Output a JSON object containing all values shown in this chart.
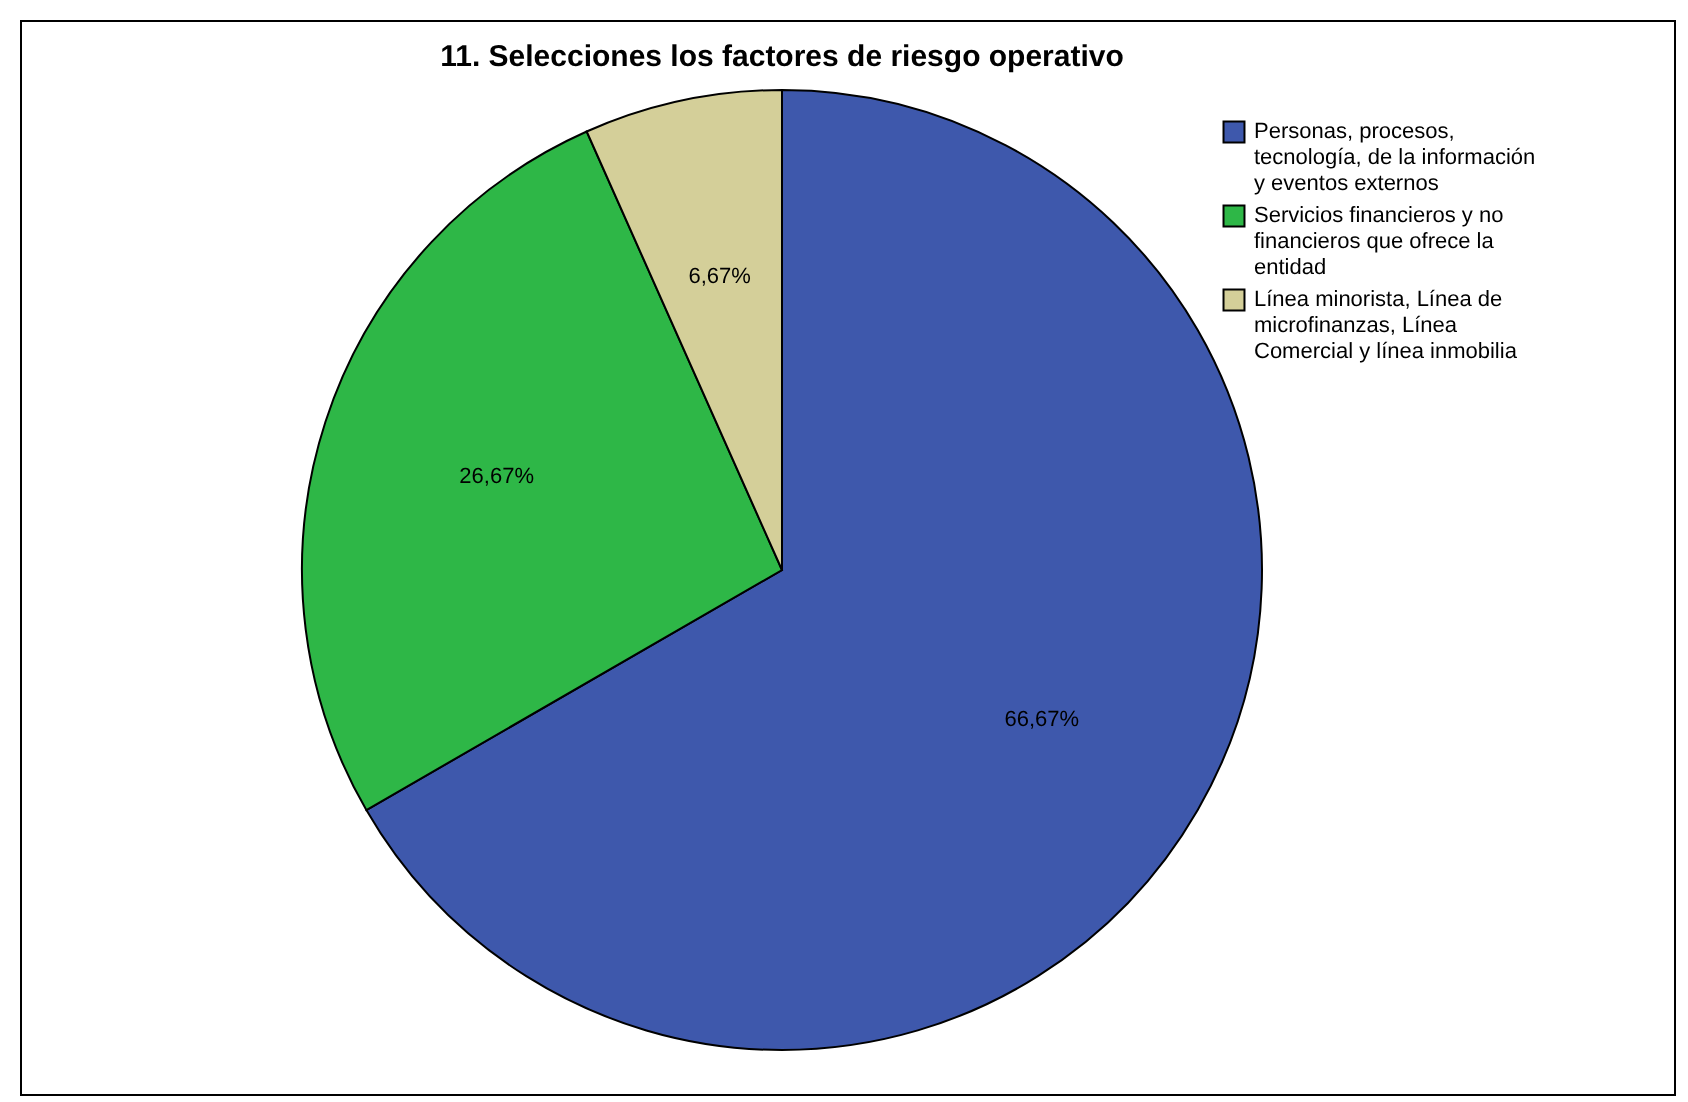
{
  "chart_data": {
    "type": "pie",
    "title": "11. Selecciones los factores de riesgo operativo",
    "categories": [
      "Personas, procesos, tecnología, de la información y eventos externos",
      "Servicios financieros y no financieros que ofrece la entidad",
      "Línea minorista, Línea de microfinanzas, Línea Comercial y línea inmobilia"
    ],
    "values": [
      66.67,
      26.67,
      6.67
    ],
    "colors": [
      "#3e58ac",
      "#2eb747",
      "#d4cf99"
    ],
    "value_labels": [
      "66,67%",
      "26,67%",
      "6,67%"
    ],
    "legend": "top right"
  }
}
